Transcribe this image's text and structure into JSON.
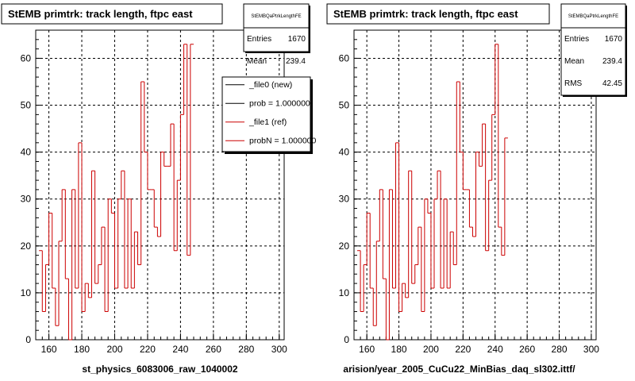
{
  "footer_text": "",
  "chart_data": [
    {
      "type": "histogram",
      "title": "StEMB primtrk: track length, ftpc east",
      "xlabel": "st_physics_6083006_raw_1040002",
      "ylabel": "",
      "xlim": [
        152,
        303
      ],
      "ylim": [
        0,
        66
      ],
      "x_ticks": [
        160,
        180,
        200,
        220,
        240,
        260,
        280,
        300
      ],
      "y_ticks": [
        0,
        10,
        20,
        30,
        40,
        50,
        60
      ],
      "grid": true,
      "bin_width": 2,
      "bin_start": 154,
      "series": [
        {
          "name": "_file1 (ref)",
          "color": "#cc0000",
          "values": [
            19,
            6,
            16,
            27,
            11,
            3,
            21,
            32,
            13,
            0,
            32,
            11,
            42,
            6,
            12,
            9,
            36,
            12,
            16,
            24,
            6,
            30,
            27,
            11,
            30,
            36,
            11,
            30,
            11,
            23,
            16,
            55,
            40,
            32,
            32,
            24,
            22,
            40,
            37,
            37,
            46,
            19,
            34,
            48,
            63,
            18,
            63
          ]
        }
      ],
      "stats": {
        "name": "StEMBQaPtrkLengthFE",
        "rows": [
          {
            "label": "Entries",
            "value": "1670"
          },
          {
            "label": "Mean",
            "value": "239.4"
          }
        ]
      },
      "legend": {
        "position": "top-right",
        "entries": [
          {
            "label": "_file0 (new)",
            "color": "#000000"
          },
          {
            "label": "prob = 1.000000",
            "color": "#000000"
          },
          {
            "label": "_file1 (ref)",
            "color": "#cc0000"
          },
          {
            "label": "probN = 1.000000",
            "color": "#cc0000"
          }
        ]
      }
    },
    {
      "type": "histogram",
      "title": "StEMB primtrk: track length, ftpc east",
      "xlabel": "arision/year_2005_CuCu22_MinBias_daq_sl302.ittf/",
      "ylabel": "",
      "xlim": [
        152,
        303
      ],
      "ylim": [
        0,
        66
      ],
      "x_ticks": [
        160,
        180,
        200,
        220,
        240,
        260,
        280,
        300
      ],
      "y_ticks": [
        0,
        10,
        20,
        30,
        40,
        50,
        60
      ],
      "grid": true,
      "bin_width": 2,
      "bin_start": 154,
      "series": [
        {
          "name": "",
          "color": "#cc0000",
          "values": [
            19,
            6,
            16,
            27,
            11,
            3,
            21,
            32,
            13,
            0,
            32,
            11,
            42,
            6,
            12,
            9,
            36,
            12,
            16,
            24,
            6,
            30,
            27,
            11,
            30,
            36,
            11,
            30,
            11,
            23,
            16,
            55,
            40,
            32,
            32,
            24,
            22,
            40,
            37,
            46,
            19,
            34,
            48,
            63,
            24,
            18,
            43
          ]
        }
      ],
      "stats": {
        "name": "StEMBQaPtrkLengthFE",
        "rows": [
          {
            "label": "Entries",
            "value": "1670"
          },
          {
            "label": "Mean",
            "value": "239.4"
          },
          {
            "label": "RMS",
            "value": "42.45"
          }
        ]
      }
    }
  ]
}
